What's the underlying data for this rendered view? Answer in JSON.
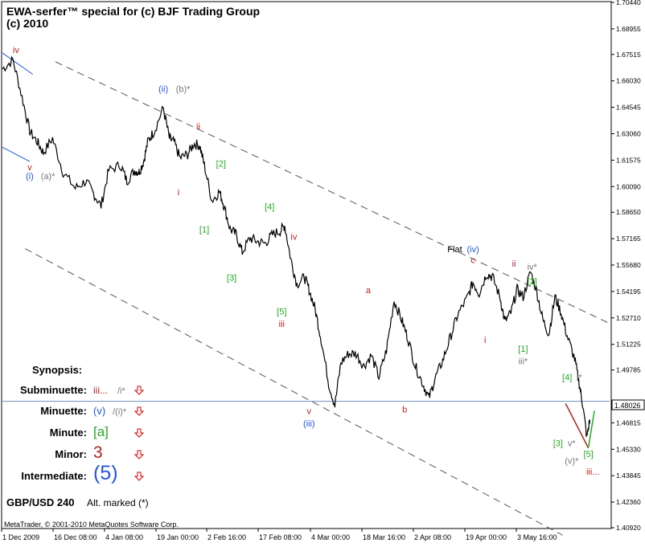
{
  "header": {
    "title_line1": "EWA-serfer™ special for (c) BJF Trading Group",
    "title_line2": "(c) 2010"
  },
  "footer": {
    "copyright": "MetaTrader, © 2001-2010 MetaQuotes Software Corp."
  },
  "symbol_label": "GBP/USD 240",
  "alt_label": "Alt. marked (*)",
  "price_readout": "1.48026",
  "colors": {
    "background": "#ffffff",
    "frame": "#000000",
    "price": "#000000",
    "channel": "#555555",
    "horizontal_line": "#6f8fb8",
    "blue": "#2255dd",
    "red": "#b22222",
    "green": "#22aa22",
    "grey": "#777777",
    "arrow_red": "#dd0000"
  },
  "synopsis": {
    "title": "Synopsis:",
    "rows": [
      {
        "label": "Subminuette:",
        "value": "iii...",
        "alt": "/i*",
        "value_color": "#b22222",
        "alt_color": "#777777",
        "arrow": "down-arrow"
      },
      {
        "label": "Minuette:",
        "value": "(v)",
        "alt": "/(i)*",
        "value_color": "#2255dd",
        "alt_color": "#777777",
        "arrow": "down-arrow"
      },
      {
        "label": "Minute:",
        "value": "[a]",
        "alt": "",
        "value_color": "#22aa22",
        "alt_color": "#777777",
        "arrow": "down-arrow"
      },
      {
        "label": "Minor:",
        "value": "3",
        "alt": "",
        "value_color": "#b22222",
        "alt_color": "#777777",
        "arrow": "down-arrow"
      },
      {
        "label": "Intermediate:",
        "value": "(5)",
        "alt": "",
        "value_color": "#2255dd",
        "alt_color": "#777777",
        "arrow": "down-arrow"
      }
    ]
  },
  "chart_data": {
    "type": "line",
    "title": "EWA-serfer™ special for (c) BJF Trading Group",
    "symbol": "GBP/USD",
    "timeframe": "240",
    "x_ticks": [
      "1 Dec 2009",
      "16 Dec 08:00",
      "4 Jan 08:00",
      "19 Jan 00:00",
      "2 Feb 16:00",
      "17 Feb 08:00",
      "4 Mar 00:00",
      "18 Mar 16:00",
      "2 Apr 08:00",
      "19 Apr 00:00",
      "3 May 16:00"
    ],
    "y_ticks": [
      "1.70440",
      "1.68955",
      "1.67515",
      "1.66030",
      "1.64545",
      "1.63060",
      "1.61575",
      "1.60090",
      "1.58650",
      "1.57165",
      "1.55680",
      "1.54195",
      "1.52710",
      "1.51225",
      "1.49785",
      "1.48026",
      "1.46815",
      "1.45330",
      "1.43845",
      "1.42360",
      "1.40920"
    ],
    "ylim": [
      1.4092,
      1.7044
    ],
    "grid": false,
    "price_path": [
      [
        0.0,
        1.667
      ],
      [
        0.7,
        1.672
      ],
      [
        1.3,
        1.651
      ],
      [
        1.8,
        1.632
      ],
      [
        2.3,
        1.626
      ],
      [
        2.7,
        1.62
      ],
      [
        3.3,
        1.628
      ],
      [
        4.0,
        1.609
      ],
      [
        4.8,
        1.6
      ],
      [
        5.5,
        1.604
      ],
      [
        6.0,
        1.597
      ],
      [
        6.5,
        1.59
      ],
      [
        7.0,
        1.61
      ],
      [
        7.8,
        1.613
      ],
      [
        8.2,
        1.604
      ],
      [
        8.7,
        1.61
      ],
      [
        9.0,
        1.609
      ],
      [
        9.3,
        1.615
      ],
      [
        9.6,
        1.627
      ],
      [
        10.0,
        1.632
      ],
      [
        10.6,
        1.645
      ],
      [
        11.0,
        1.628
      ],
      [
        11.3,
        1.626
      ],
      [
        11.7,
        1.617
      ],
      [
        12.2,
        1.619
      ],
      [
        12.6,
        1.625
      ],
      [
        13.0,
        1.624
      ],
      [
        13.3,
        1.613
      ],
      [
        13.8,
        1.593
      ],
      [
        14.3,
        1.598
      ],
      [
        14.6,
        1.59
      ],
      [
        15.0,
        1.577
      ],
      [
        15.4,
        1.574
      ],
      [
        15.8,
        1.564
      ],
      [
        16.3,
        1.572
      ],
      [
        16.8,
        1.57
      ],
      [
        17.3,
        1.569
      ],
      [
        17.8,
        1.574
      ],
      [
        18.3,
        1.576
      ],
      [
        18.6,
        1.579
      ],
      [
        19.0,
        1.56
      ],
      [
        19.4,
        1.546
      ],
      [
        19.9,
        1.55
      ],
      [
        20.2,
        1.543
      ],
      [
        20.6,
        1.532
      ],
      [
        21.0,
        1.515
      ],
      [
        21.5,
        1.49
      ],
      [
        21.9,
        1.478
      ],
      [
        22.3,
        1.502
      ],
      [
        22.8,
        1.507
      ],
      [
        23.3,
        1.507
      ],
      [
        23.8,
        1.5
      ],
      [
        24.3,
        1.506
      ],
      [
        24.8,
        1.494
      ],
      [
        25.3,
        1.509
      ],
      [
        25.8,
        1.537
      ],
      [
        26.3,
        1.526
      ],
      [
        26.7,
        1.516
      ],
      [
        27.2,
        1.5
      ],
      [
        27.7,
        1.49
      ],
      [
        28.1,
        1.482
      ],
      [
        28.5,
        1.493
      ],
      [
        29.0,
        1.503
      ],
      [
        29.5,
        1.516
      ],
      [
        30.0,
        1.529
      ],
      [
        30.6,
        1.538
      ],
      [
        31.0,
        1.547
      ],
      [
        31.4,
        1.541
      ],
      [
        31.9,
        1.552
      ],
      [
        32.3,
        1.55
      ],
      [
        32.8,
        1.538
      ],
      [
        33.1,
        1.525
      ],
      [
        33.5,
        1.53
      ],
      [
        33.9,
        1.543
      ],
      [
        34.3,
        1.539
      ],
      [
        34.8,
        1.553
      ],
      [
        35.2,
        1.542
      ],
      [
        35.6,
        1.526
      ],
      [
        36.0,
        1.518
      ],
      [
        36.4,
        1.539
      ],
      [
        36.8,
        1.53
      ],
      [
        37.2,
        1.517
      ],
      [
        37.7,
        1.504
      ],
      [
        38.0,
        1.49
      ],
      [
        38.2,
        1.48
      ],
      [
        38.5,
        1.46
      ],
      [
        38.7,
        1.47
      ]
    ],
    "wave_labels": [
      {
        "text": "iv",
        "color": "red",
        "x": 0.9,
        "y": 1.676
      },
      {
        "text": "v",
        "color": "red",
        "x": 1.8,
        "y": 1.61
      },
      {
        "text": "(i)",
        "color": "blue",
        "x": 1.8,
        "y": 1.605
      },
      {
        "text": "(a)*",
        "color": "grey",
        "x": 3.0,
        "y": 1.605
      },
      {
        "text": "(ii)",
        "color": "blue",
        "x": 10.6,
        "y": 1.654
      },
      {
        "text": "(b)*",
        "color": "grey",
        "x": 11.9,
        "y": 1.654
      },
      {
        "text": "ii",
        "color": "red",
        "x": 12.9,
        "y": 1.633
      },
      {
        "text": "i",
        "color": "red",
        "x": 11.6,
        "y": 1.596
      },
      {
        "text": "[2]",
        "color": "green",
        "x": 14.4,
        "y": 1.612
      },
      {
        "text": "[1]",
        "color": "green",
        "x": 13.3,
        "y": 1.575
      },
      {
        "text": "[4]",
        "color": "green",
        "x": 17.6,
        "y": 1.588
      },
      {
        "text": "iv",
        "color": "red",
        "x": 19.2,
        "y": 1.571
      },
      {
        "text": "[3]",
        "color": "green",
        "x": 15.1,
        "y": 1.548
      },
      {
        "text": "[5]",
        "color": "green",
        "x": 18.4,
        "y": 1.529
      },
      {
        "text": "iii",
        "color": "red",
        "x": 18.4,
        "y": 1.522
      },
      {
        "text": "v",
        "color": "red",
        "x": 20.2,
        "y": 1.473
      },
      {
        "text": "(iii)",
        "color": "blue",
        "x": 20.2,
        "y": 1.466
      },
      {
        "text": "a",
        "color": "red",
        "x": 24.1,
        "y": 1.541
      },
      {
        "text": "b",
        "color": "red",
        "x": 26.5,
        "y": 1.474
      },
      {
        "text": "Flat",
        "color": "black",
        "x": 29.8,
        "y": 1.564
      },
      {
        "text": "(iv)",
        "color": "blue",
        "x": 31.0,
        "y": 1.564
      },
      {
        "text": "c",
        "color": "red",
        "x": 31.0,
        "y": 1.558
      },
      {
        "text": "ii",
        "color": "red",
        "x": 33.7,
        "y": 1.556
      },
      {
        "text": "iv*",
        "color": "grey",
        "x": 34.9,
        "y": 1.554
      },
      {
        "text": "[2]",
        "color": "green",
        "x": 34.9,
        "y": 1.546
      },
      {
        "text": "i",
        "color": "red",
        "x": 31.8,
        "y": 1.513
      },
      {
        "text": "[1]",
        "color": "green",
        "x": 34.3,
        "y": 1.508
      },
      {
        "text": "iii*",
        "color": "grey",
        "x": 34.3,
        "y": 1.501
      },
      {
        "text": "[4]",
        "color": "green",
        "x": 37.2,
        "y": 1.492
      },
      {
        "text": "i*",
        "color": "grey",
        "x": 38.0,
        "y": 1.492
      },
      {
        "text": "[3]",
        "color": "green",
        "x": 36.6,
        "y": 1.455
      },
      {
        "text": "v*",
        "color": "grey",
        "x": 37.5,
        "y": 1.455
      },
      {
        "text": "[5]",
        "color": "green",
        "x": 38.6,
        "y": 1.449
      },
      {
        "text": "(v)*",
        "color": "grey",
        "x": 37.5,
        "y": 1.445
      },
      {
        "text": "iii...",
        "color": "red",
        "x": 38.9,
        "y": 1.439
      }
    ],
    "projection": [
      {
        "color": "red",
        "points": [
          [
            37.1,
            1.479
          ],
          [
            38.6,
            1.454
          ]
        ]
      },
      {
        "color": "green",
        "points": [
          [
            38.6,
            1.454
          ],
          [
            39.0,
            1.475
          ]
        ]
      }
    ],
    "channels": [
      {
        "color": "grey",
        "dash": true,
        "points": [
          [
            3.5,
            1.671
          ],
          [
            40.0,
            1.524
          ]
        ]
      },
      {
        "color": "grey",
        "dash": true,
        "points": [
          [
            1.5,
            1.566
          ],
          [
            36.9,
            1.405
          ]
        ]
      }
    ],
    "blue_segments": [
      {
        "points": [
          [
            0.0,
            1.676
          ],
          [
            2.0,
            1.664
          ]
        ]
      },
      {
        "points": [
          [
            0.0,
            1.623
          ],
          [
            1.8,
            1.615
          ]
        ]
      }
    ],
    "hline": 1.48026
  }
}
